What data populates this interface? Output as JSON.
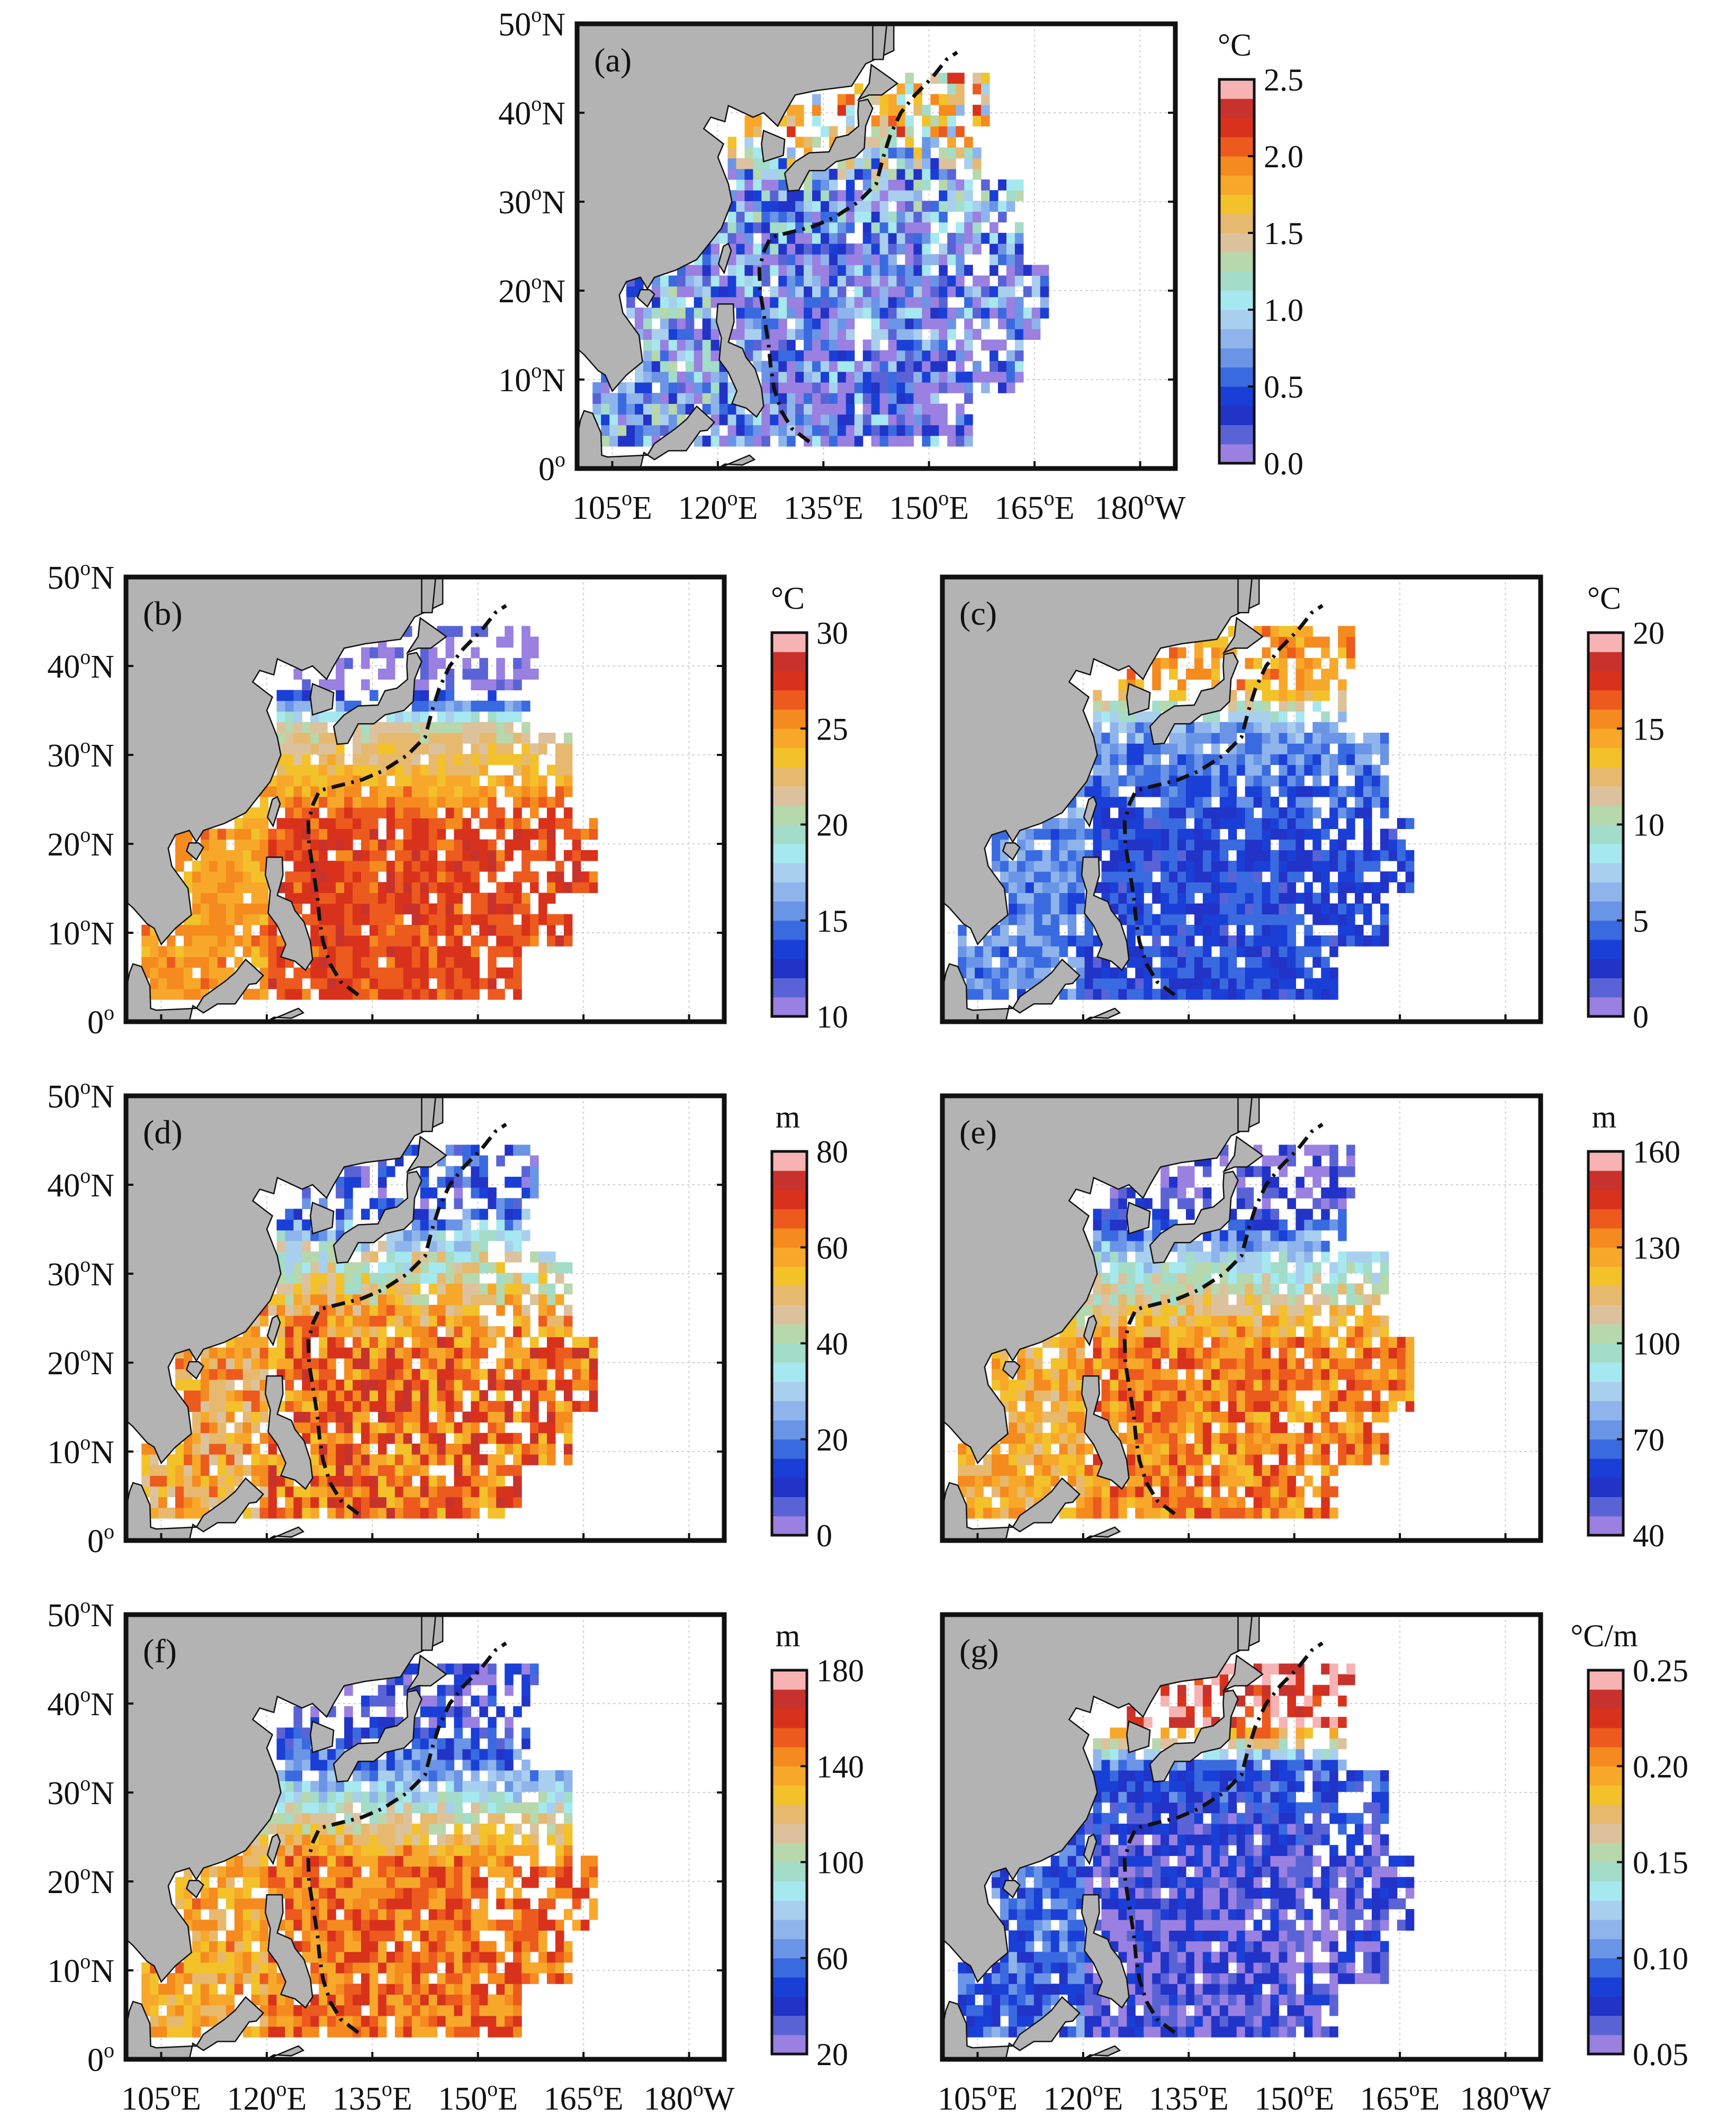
{
  "figure": {
    "lon_ticks": [
      {
        "deg": "105",
        "hemi": "E"
      },
      {
        "deg": "120",
        "hemi": "E"
      },
      {
        "deg": "135",
        "hemi": "E"
      },
      {
        "deg": "150",
        "hemi": "E"
      },
      {
        "deg": "165",
        "hemi": "E"
      },
      {
        "deg": "180",
        "hemi": "W"
      }
    ],
    "lat_ticks": [
      {
        "deg": "50",
        "hemi": "N"
      },
      {
        "deg": "40",
        "hemi": "N"
      },
      {
        "deg": "30",
        "hemi": "N"
      },
      {
        "deg": "20",
        "hemi": "N"
      },
      {
        "deg": "10",
        "hemi": "N"
      },
      {
        "deg": "0",
        "hemi": ""
      }
    ],
    "degree_symbol": "o"
  },
  "colors": {
    "land": "#b3b3b3",
    "ocean": "#ffffff",
    "frame": "#111111",
    "dashed_line": "#111111",
    "colormap": [
      "#9a80e0",
      "#5a63d6",
      "#2233c8",
      "#1a3fd6",
      "#3a6ae0",
      "#6a94e6",
      "#8fb4ec",
      "#a9cfee",
      "#a6e8ef",
      "#a3dcc9",
      "#b7d7ad",
      "#dcc29c",
      "#e6b96e",
      "#f3c12a",
      "#f7a82a",
      "#f58a1e",
      "#ec5a1e",
      "#d8321c",
      "#c8322c",
      "#f7b3b3"
    ]
  },
  "chart_data": [
    {
      "panel": "a",
      "label": "(a)",
      "type": "heatmap",
      "unit": "°C",
      "colorbar_ticks": [
        "0.0",
        "0.5",
        "1.0",
        "1.5",
        "2.0",
        "2.5"
      ],
      "vmin": 0.0,
      "vmax": 2.5,
      "field_profile": {
        "tropics": 0.15,
        "subtropics": 0.3,
        "north": 0.6,
        "noise": 0.28
      },
      "lon_range": [
        100,
        185
      ],
      "lat_range": [
        0,
        50
      ]
    },
    {
      "panel": "b",
      "label": "(b)",
      "type": "heatmap",
      "unit": "°C",
      "colorbar_ticks": [
        "10",
        "15",
        "20",
        "25",
        "30"
      ],
      "vmin": 10,
      "vmax": 30,
      "field_profile": {
        "tropics": 0.85,
        "subtropics": 0.55,
        "north": 0.03,
        "noise": 0.06
      },
      "lon_range": [
        100,
        185
      ],
      "lat_range": [
        0,
        50
      ]
    },
    {
      "panel": "c",
      "label": "(c)",
      "type": "heatmap",
      "unit": "°C",
      "colorbar_ticks": [
        "0",
        "5",
        "10",
        "15",
        "20"
      ],
      "vmin": 0,
      "vmax": 20,
      "field_profile": {
        "tropics": 0.17,
        "subtropics": 0.3,
        "north": 0.75,
        "noise": 0.08
      },
      "lon_range": [
        100,
        185
      ],
      "lat_range": [
        0,
        50
      ]
    },
    {
      "panel": "d",
      "label": "(d)",
      "type": "heatmap",
      "unit": "m",
      "colorbar_ticks": [
        "0",
        "20",
        "40",
        "60",
        "80"
      ],
      "vmin": 0,
      "vmax": 80,
      "field_profile": {
        "tropics": 0.8,
        "subtropics": 0.45,
        "north": 0.15,
        "noise": 0.14
      },
      "lon_range": [
        100,
        185
      ],
      "lat_range": [
        0,
        50
      ]
    },
    {
      "panel": "e",
      "label": "(e)",
      "type": "heatmap",
      "unit": "m",
      "colorbar_ticks": [
        "40",
        "70",
        "100",
        "130",
        "160"
      ],
      "vmin": 40,
      "vmax": 160,
      "field_profile": {
        "tropics": 0.78,
        "subtropics": 0.35,
        "north": 0.05,
        "noise": 0.1
      },
      "lon_range": [
        100,
        185
      ],
      "lat_range": [
        0,
        50
      ]
    },
    {
      "panel": "f",
      "label": "(f)",
      "type": "heatmap",
      "unit": "m",
      "colorbar_ticks": [
        "20",
        "60",
        "100",
        "140",
        "180"
      ],
      "vmin": 20,
      "vmax": 180,
      "field_profile": {
        "tropics": 0.8,
        "subtropics": 0.25,
        "north": 0.12,
        "noise": 0.1
      },
      "lon_range": [
        100,
        185
      ],
      "lat_range": [
        0,
        50
      ]
    },
    {
      "panel": "g",
      "label": "(g)",
      "type": "heatmap",
      "unit": "°C/m",
      "colorbar_ticks": [
        "0.05",
        "0.10",
        "0.15",
        "0.20",
        "0.25"
      ],
      "vmin": 0.05,
      "vmax": 0.25,
      "field_profile": {
        "tropics": 0.08,
        "subtropics": 0.2,
        "north": 0.92,
        "noise": 0.1
      },
      "lon_range": [
        100,
        185
      ],
      "lat_range": [
        0,
        50
      ]
    }
  ]
}
